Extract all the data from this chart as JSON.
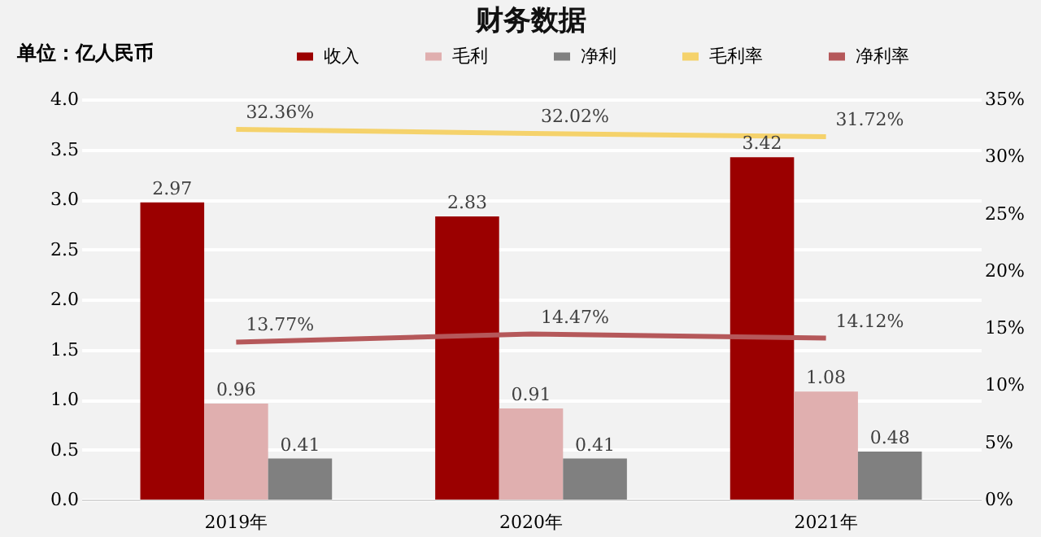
{
  "chart_data": {
    "type": "bar",
    "title": "财务数据",
    "ylabel": "单位：亿人民币",
    "categories": [
      "2019年",
      "2020年",
      "2021年"
    ],
    "series": [
      {
        "name": "收入",
        "color": "#9b0000",
        "values": [
          2.97,
          2.83,
          3.42
        ]
      },
      {
        "name": "毛利",
        "color": "#e0afaf",
        "values": [
          0.96,
          0.91,
          1.08
        ]
      },
      {
        "name": "净利",
        "color": "#808080",
        "values": [
          0.41,
          0.41,
          0.48
        ]
      },
      {
        "name": "毛利率",
        "type": "line",
        "axis": "y2",
        "color": "#f5d26b",
        "values": [
          32.36,
          32.02,
          31.72
        ],
        "value_labels": [
          "32.36%",
          "32.02%",
          "31.72%"
        ]
      },
      {
        "name": "净利率",
        "type": "line",
        "axis": "y2",
        "color": "#b5585a",
        "values": [
          13.77,
          14.47,
          14.12
        ],
        "value_labels": [
          "13.77%",
          "14.47%",
          "14.12%"
        ]
      }
    ],
    "ylim": [
      0,
      4
    ],
    "yticks": [
      {
        "value": 0,
        "label": "0.0"
      },
      {
        "value": 0.5,
        "label": "0.5"
      },
      {
        "value": 1,
        "label": "1.0"
      },
      {
        "value": 1.5,
        "label": "1.5"
      },
      {
        "value": 2,
        "label": "2.0"
      },
      {
        "value": 2.5,
        "label": "2.5"
      },
      {
        "value": 3,
        "label": "3.0"
      },
      {
        "value": 3.5,
        "label": "3.5"
      },
      {
        "value": 4,
        "label": "4.0"
      }
    ],
    "y2lim": [
      0,
      35
    ],
    "y2ticks": [
      {
        "value": 0,
        "label": "0%"
      },
      {
        "value": 5,
        "label": "5%"
      },
      {
        "value": 10,
        "label": "10%"
      },
      {
        "value": 15,
        "label": "15%"
      },
      {
        "value": 20,
        "label": "20%"
      },
      {
        "value": 25,
        "label": "25%"
      },
      {
        "value": 30,
        "label": "30%"
      },
      {
        "value": 35,
        "label": "35%"
      }
    ],
    "data_labels": true,
    "grid": "y",
    "legend": "top"
  }
}
